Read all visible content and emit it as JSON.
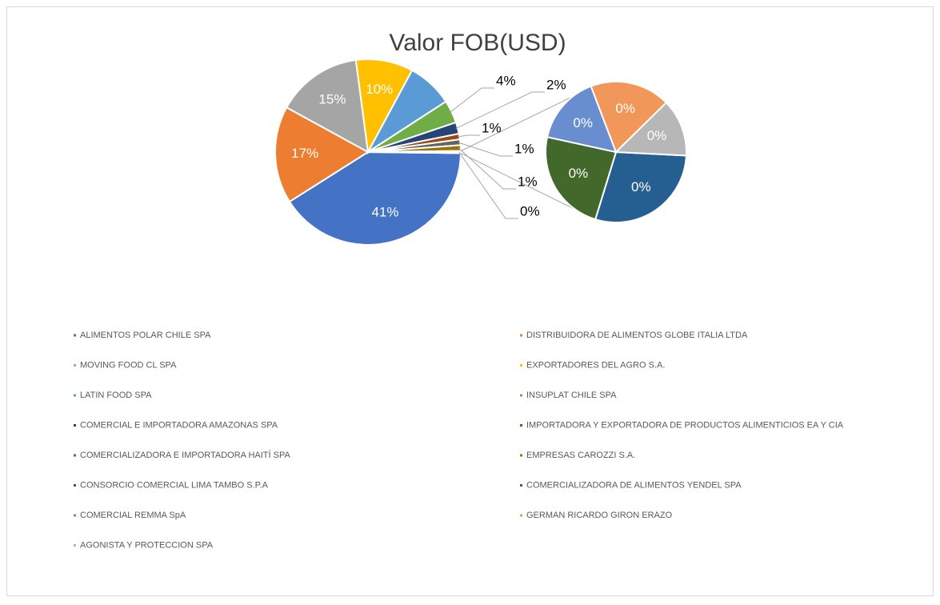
{
  "chart_data": {
    "type": "pie_of_pie",
    "title": "Valor FOB(USD)",
    "categories": [
      "ALIMENTOS POLAR CHILE SPA",
      "DISTRIBUIDORA DE ALIMENTOS GLOBE ITALIA LTDA",
      "MOVING FOOD CL SPA",
      "EXPORTADORES DEL AGRO S.A.",
      "LATIN FOOD SPA",
      "INSUPLAT CHILE SPA",
      "COMERCIAL E IMPORTADORA AMAZONAS SPA",
      "IMPORTADORA Y EXPORTADORA DE PRODUCTOS ALIMENTICIOS EA Y CIA",
      "COMERCIALIZADORA E IMPORTADORA HAITÍ SPA",
      "EMPRESAS CAROZZI S.A.",
      "CONSORCIO COMERCIAL LIMA TAMBO S.P.A",
      "COMERCIALIZADORA DE ALIMENTOS YENDEL SPA",
      "COMERCIAL REMMA SpA",
      "GERMAN RICARDO GIRON ERAZO",
      "AGONISTA Y PROTECCION SPA"
    ],
    "values": [
      41,
      17,
      15,
      10,
      8,
      4,
      2,
      1,
      1,
      1,
      0.11,
      0.09,
      0.06,
      0.07,
      0.05
    ],
    "value_labels": [
      "41%",
      "17%",
      "15%",
      "10%",
      null,
      "4%",
      "2%",
      "1%",
      "1%",
      "1%",
      "0%",
      "0%",
      "0%",
      "0%",
      "0%"
    ],
    "colors": [
      "#4472c4",
      "#ed7d31",
      "#a5a5a5",
      "#ffc000",
      "#5b9bd5",
      "#70ad47",
      "#264478",
      "#9e480e",
      "#636363",
      "#997300",
      "#255e91",
      "#43682b",
      "#698ed0",
      "#f1975a",
      "#b7b7b7"
    ],
    "secondary_count": 5,
    "other_label": "0%",
    "legend": "bottom"
  }
}
